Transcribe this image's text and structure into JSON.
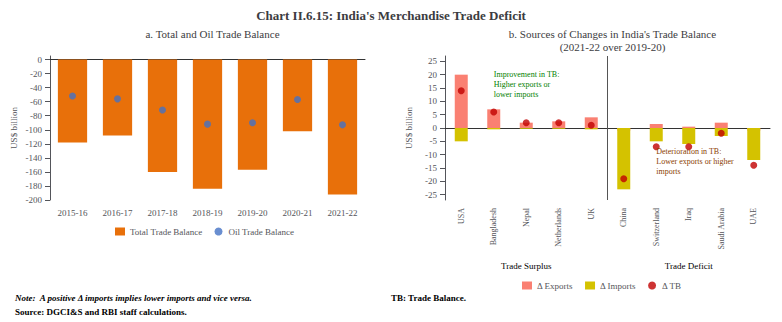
{
  "title": "Chart II.6.15: India's Merchandise Trade Deficit",
  "notes": [
    "Note:  A positive Δ imports implies lower imports and vice versa.",
    "Source: DGCI&S and RBI staff calculations.",
    "TB: Trade Balance."
  ],
  "chart_data": [
    {
      "type": "bar",
      "title": "a. Total and Oil Trade Balance",
      "ylabel": "US$ billion",
      "categories": [
        "2015-16",
        "2016-17",
        "2017-18",
        "2018-19",
        "2019-20",
        "2020-21",
        "2021-22"
      ],
      "series": [
        {
          "name": "Total Trade Balance",
          "type": "bar",
          "color": "#E8700A",
          "values": [
            -118,
            -108,
            -160,
            -184,
            -157,
            -102,
            -192
          ]
        },
        {
          "name": "Oil Trade Balance",
          "type": "scatter",
          "color": "#4472C4",
          "values": [
            -52,
            -56,
            -72,
            -92,
            -90,
            -57,
            -93
          ]
        }
      ],
      "ylim": [
        -200,
        5
      ],
      "yticks": [
        0,
        -20,
        -40,
        -60,
        -80,
        -100,
        -120,
        -140,
        -160,
        -180,
        -200
      ],
      "grid": false,
      "legend": "bottom"
    },
    {
      "type": "bar",
      "title": "b. Sources of Changes in India's Trade Balance\n(2021-22 over 2019-20)",
      "ylabel": "US$ billion",
      "categories": [
        "USA",
        "Bangladesh",
        "Nepal",
        "Netherlands",
        "UK",
        "China",
        "Switzerland",
        "Iraq",
        "Saudi Arabia",
        "UAE"
      ],
      "series": [
        {
          "name": "Δ Exports",
          "type": "bar",
          "color": "#FA8072",
          "values": [
            20,
            7,
            2,
            2.5,
            4,
            -1,
            1.5,
            0.5,
            2,
            -1
          ]
        },
        {
          "name": "Δ Imports",
          "type": "bar",
          "color": "#D4C200",
          "values": [
            -5,
            -0.5,
            -0.3,
            -0.3,
            -0.5,
            -23,
            -5,
            -6,
            -3,
            -12
          ]
        },
        {
          "name": "Δ TB",
          "type": "scatter",
          "color": "#C00000",
          "values": [
            14,
            6,
            2,
            2,
            1,
            -19,
            -7,
            -7,
            -2,
            -14
          ]
        }
      ],
      "ylim": [
        -27,
        27
      ],
      "yticks": [
        25,
        20,
        15,
        10,
        5,
        0,
        -5,
        -10,
        -15,
        -20,
        -25
      ],
      "grid": false,
      "legend": "bottom",
      "groups": [
        {
          "label": "Trade Surplus",
          "categories": [
            "USA",
            "Bangladesh",
            "Nepal",
            "Netherlands",
            "UK"
          ]
        },
        {
          "label": "Trade Deficit",
          "categories": [
            "China",
            "Switzerland",
            "Iraq",
            "Saudi Arabia",
            "UAE"
          ]
        }
      ],
      "annotations": [
        {
          "text": "Improvement in TB:\nHigher exports or\nlower imports",
          "x": "Bangladesh",
          "y": 22,
          "color": "green"
        },
        {
          "text": "Deterioration in TB:\nLower exports or higher\nimports",
          "x": "Switzerland",
          "y": -7,
          "color": "#8B4000"
        }
      ]
    }
  ]
}
